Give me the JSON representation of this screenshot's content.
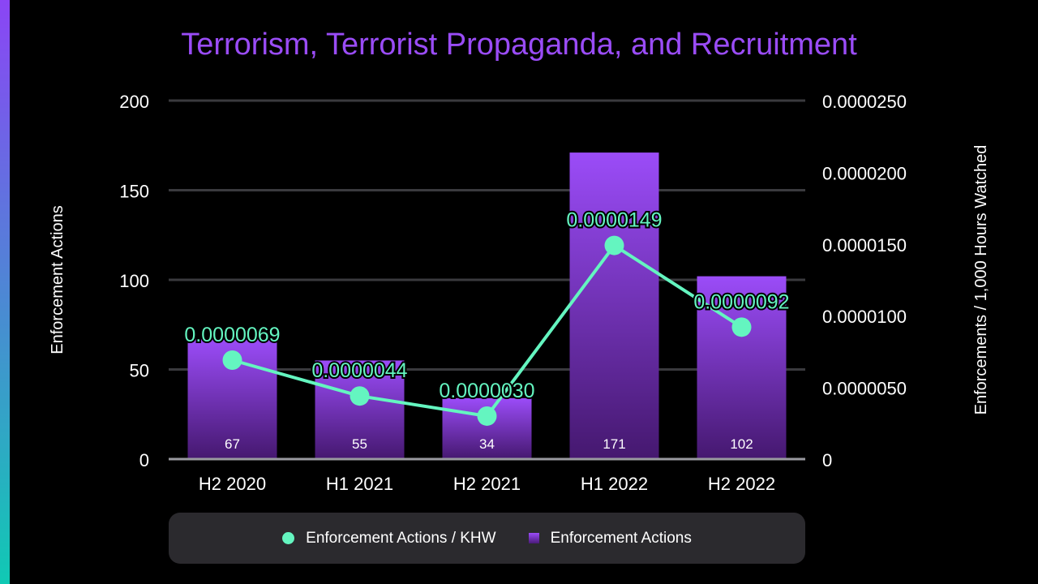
{
  "chart_data": {
    "type": "bar",
    "title": "Terrorism, Terrorist Propaganda, and Recruitment",
    "categories": [
      "H2 2020",
      "H1 2021",
      "H2 2021",
      "H1 2022",
      "H2 2022"
    ],
    "series": [
      {
        "name": "Enforcement Actions",
        "type": "bar",
        "axis": "left",
        "values": [
          67,
          55,
          34,
          171,
          102
        ],
        "labels": [
          "67",
          "55",
          "34",
          "171",
          "102"
        ],
        "color": "#9b4cf8"
      },
      {
        "name": "Enforcement Actions / KHW",
        "type": "line",
        "axis": "right",
        "values": [
          6.9e-06,
          4.4e-06,
          3e-06,
          1.49e-05,
          9.2e-06
        ],
        "labels": [
          "0.0000069",
          "0.0000044",
          "0.0000030",
          "0.0000149",
          "0.0000092"
        ],
        "color": "#64f5c0"
      }
    ],
    "ylabel": "Enforcement Actions",
    "y2label": "Enforcements / 1,000 Hours Watched",
    "ylim": [
      0,
      200
    ],
    "y2lim": [
      0,
      2.5e-05
    ],
    "yticks": [
      "0",
      "50",
      "100",
      "150",
      "200"
    ],
    "y2ticks": [
      "0",
      "0.0000050",
      "0.0000100",
      "0.0000150",
      "0.0000200",
      "0.0000250"
    ],
    "grid": true,
    "legend": "bottom"
  }
}
